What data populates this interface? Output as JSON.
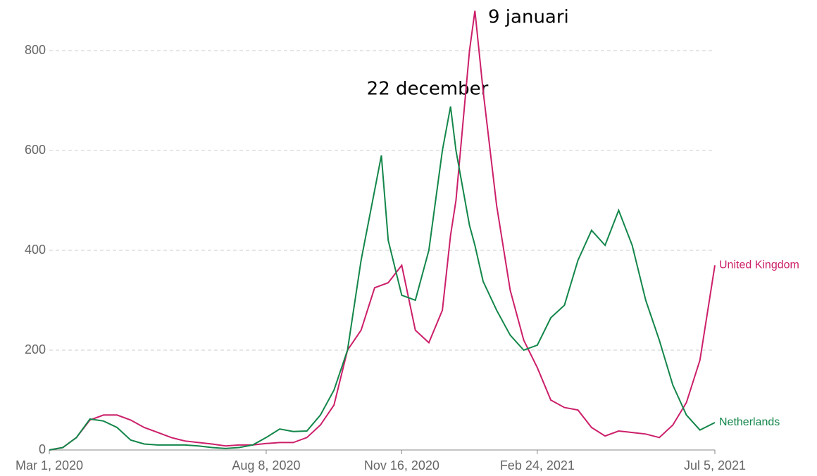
{
  "chart_data": {
    "type": "line",
    "x": [
      "2020-03-01",
      "2020-03-11",
      "2020-03-21",
      "2020-03-31",
      "2020-04-10",
      "2020-04-20",
      "2020-04-30",
      "2020-05-10",
      "2020-05-20",
      "2020-05-30",
      "2020-06-09",
      "2020-06-19",
      "2020-06-29",
      "2020-07-09",
      "2020-07-19",
      "2020-07-29",
      "2020-08-08",
      "2020-08-18",
      "2020-08-28",
      "2020-09-07",
      "2020-09-17",
      "2020-09-27",
      "2020-10-07",
      "2020-10-17",
      "2020-10-27",
      "2020-11-01",
      "2020-11-06",
      "2020-11-16",
      "2020-11-26",
      "2020-12-06",
      "2020-12-16",
      "2020-12-22",
      "2020-12-26",
      "2021-01-05",
      "2021-01-09",
      "2021-01-15",
      "2021-01-25",
      "2021-02-04",
      "2021-02-14",
      "2021-02-24",
      "2021-03-06",
      "2021-03-16",
      "2021-03-26",
      "2021-04-05",
      "2021-04-15",
      "2021-04-25",
      "2021-05-05",
      "2021-05-15",
      "2021-05-25",
      "2021-06-04",
      "2021-06-14",
      "2021-06-24",
      "2021-07-05"
    ],
    "series": [
      {
        "name": "United Kingdom",
        "color": "#cc1f6a",
        "values": [
          0,
          5,
          25,
          60,
          70,
          70,
          60,
          45,
          35,
          25,
          18,
          15,
          12,
          8,
          10,
          10,
          13,
          15,
          15,
          25,
          50,
          90,
          200,
          240,
          325,
          330,
          335,
          370,
          240,
          215,
          280,
          430,
          500,
          800,
          880,
          720,
          490,
          320,
          220,
          165,
          100,
          85,
          80,
          45,
          28,
          38,
          35,
          32,
          25,
          50,
          95,
          180,
          370
        ]
      },
      {
        "name": "Netherlands",
        "color": "#13864a",
        "values": [
          0,
          5,
          25,
          62,
          58,
          45,
          20,
          12,
          10,
          10,
          10,
          8,
          5,
          3,
          5,
          10,
          25,
          42,
          37,
          38,
          70,
          120,
          200,
          380,
          520,
          590,
          420,
          310,
          300,
          400,
          600,
          688,
          600,
          450,
          410,
          338,
          280,
          230,
          200,
          210,
          265,
          290,
          380,
          440,
          410,
          480,
          410,
          300,
          220,
          130,
          70,
          40,
          55
        ]
      }
    ],
    "xlim": [
      "2020-03-01",
      "2021-07-05"
    ],
    "xticks": [
      {
        "value": "2020-03-01",
        "label": "Mar 1, 2020"
      },
      {
        "value": "2020-08-08",
        "label": "Aug 8, 2020"
      },
      {
        "value": "2020-11-16",
        "label": "Nov 16, 2020"
      },
      {
        "value": "2021-02-24",
        "label": "Feb 24, 2021"
      },
      {
        "value": "2021-07-05",
        "label": "Jul 5, 2021"
      }
    ],
    "ylim": [
      0,
      800
    ],
    "yticks": [
      0,
      200,
      400,
      600,
      800
    ],
    "grid": true,
    "annotations": [
      "22 december",
      "9 januari"
    ]
  }
}
